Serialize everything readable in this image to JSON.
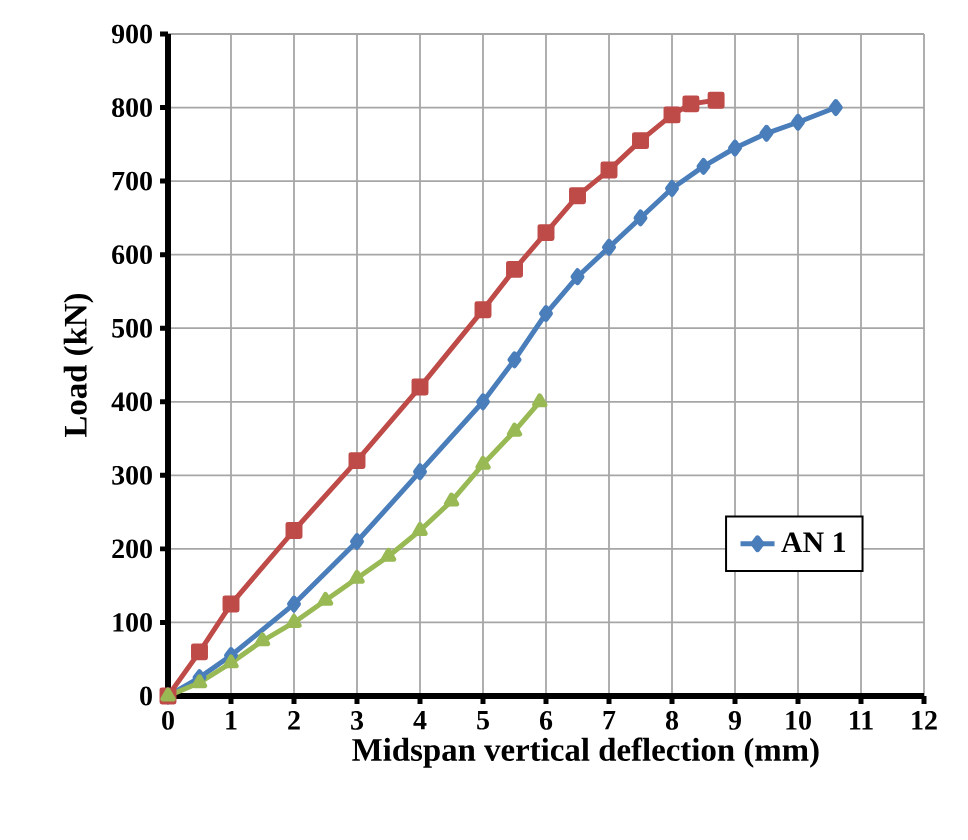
{
  "chart_data": {
    "type": "line",
    "xlabel": "Midspan vertical deflection (mm)",
    "ylabel": "Load (kN)",
    "xlim": [
      0,
      12
    ],
    "xticks": [
      0,
      1,
      2,
      3,
      4,
      5,
      6,
      7,
      8,
      9,
      10,
      11,
      12
    ],
    "ylim": [
      0,
      900
    ],
    "yticks": [
      0,
      100,
      200,
      300,
      400,
      500,
      600,
      700,
      800,
      900
    ],
    "grid": true,
    "legend": "right",
    "series": [
      {
        "name": "AN 1",
        "color": "#4a7ebb",
        "marker": "diamond",
        "x": [
          0,
          0.5,
          1,
          2,
          3,
          4,
          5,
          5.5,
          6,
          6.5,
          7,
          7.5,
          8,
          8.5,
          9,
          9.5,
          10,
          10.6
        ],
        "values": [
          0,
          25,
          55,
          125,
          210,
          305,
          400,
          457,
          520,
          570,
          610,
          650,
          690,
          720,
          745,
          765,
          780,
          800
        ]
      },
      {
        "color": "#be4b48",
        "marker": "square",
        "x": [
          0,
          0.5,
          1,
          2,
          3,
          4,
          5,
          5.5,
          6,
          6.5,
          7,
          7.5,
          8,
          8.3,
          8.7
        ],
        "values": [
          0,
          60,
          125,
          225,
          320,
          420,
          525,
          580,
          630,
          680,
          715,
          755,
          790,
          805,
          810
        ]
      },
      {
        "color": "#98b954",
        "marker": "triangle",
        "x": [
          0,
          0.5,
          1,
          1.5,
          2,
          2.5,
          3,
          3.5,
          4,
          4.5,
          5,
          5.5,
          5.9
        ],
        "values": [
          0,
          18,
          45,
          75,
          100,
          130,
          160,
          190,
          225,
          265,
          315,
          360,
          400
        ]
      }
    ]
  }
}
